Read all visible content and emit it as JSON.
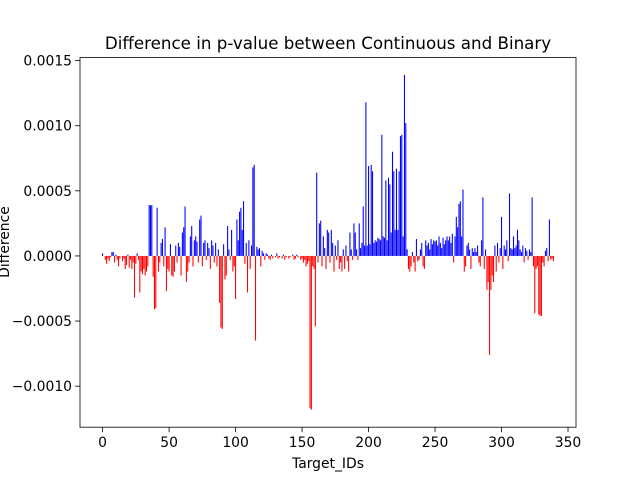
{
  "chart_data": {
    "type": "bar",
    "title": "Difference in p-value between Continuous and Binary",
    "xlabel": "Target_IDs",
    "ylabel": "Difference",
    "positive_color": "#0000ff",
    "negative_color": "#ff0000",
    "xlim": [
      -17,
      356
    ],
    "xticks": [
      0,
      50,
      100,
      150,
      200,
      250,
      300,
      350
    ],
    "ylim": [
      -0.001315,
      0.001523
    ],
    "yticks": [
      {
        "value": -0.001,
        "label": "−0.0010"
      },
      {
        "value": -0.0005,
        "label": "−0.0005"
      },
      {
        "value": 0,
        "label": "0.0000"
      },
      {
        "value": 0.0005,
        "label": "0.0005"
      },
      {
        "value": 0.001,
        "label": "0.0010"
      },
      {
        "value": 0.0015,
        "label": "0.0015"
      }
    ],
    "x": [
      0,
      1,
      2,
      3,
      4,
      5,
      6,
      7,
      8,
      9,
      10,
      11,
      12,
      13,
      14,
      15,
      16,
      17,
      18,
      19,
      20,
      21,
      22,
      23,
      24,
      25,
      26,
      27,
      28,
      29,
      30,
      31,
      32,
      33,
      34,
      35,
      36,
      37,
      38,
      39,
      40,
      41,
      42,
      43,
      44,
      45,
      46,
      47,
      48,
      49,
      50,
      51,
      52,
      53,
      54,
      55,
      56,
      57,
      58,
      59,
      60,
      61,
      62,
      63,
      64,
      65,
      66,
      67,
      68,
      69,
      70,
      71,
      72,
      73,
      74,
      75,
      76,
      77,
      78,
      79,
      80,
      81,
      82,
      83,
      84,
      85,
      86,
      87,
      88,
      89,
      90,
      91,
      92,
      93,
      94,
      95,
      96,
      97,
      98,
      99,
      100,
      101,
      102,
      103,
      104,
      105,
      106,
      107,
      108,
      109,
      110,
      111,
      112,
      113,
      114,
      115,
      116,
      117,
      118,
      119,
      120,
      121,
      122,
      123,
      124,
      125,
      126,
      127,
      128,
      129,
      130,
      131,
      132,
      133,
      134,
      135,
      136,
      137,
      138,
      139,
      140,
      141,
      142,
      143,
      144,
      145,
      146,
      147,
      148,
      149,
      150,
      151,
      152,
      153,
      154,
      155,
      156,
      157,
      158,
      159,
      160,
      161,
      162,
      163,
      164,
      165,
      166,
      167,
      168,
      169,
      170,
      171,
      172,
      173,
      174,
      175,
      176,
      177,
      178,
      179,
      180,
      181,
      182,
      183,
      184,
      185,
      186,
      187,
      188,
      189,
      190,
      191,
      192,
      193,
      194,
      195,
      196,
      197,
      198,
      199,
      200,
      201,
      202,
      203,
      204,
      205,
      206,
      207,
      208,
      209,
      210,
      211,
      212,
      213,
      214,
      215,
      216,
      217,
      218,
      219,
      220,
      221,
      222,
      223,
      224,
      225,
      226,
      227,
      228,
      229,
      230,
      231,
      232,
      233,
      234,
      235,
      236,
      237,
      238,
      239,
      240,
      241,
      242,
      243,
      244,
      245,
      246,
      247,
      248,
      249,
      250,
      251,
      252,
      253,
      254,
      255,
      256,
      257,
      258,
      259,
      260,
      261,
      262,
      263,
      264,
      265,
      266,
      267,
      268,
      269,
      270,
      271,
      272,
      273,
      274,
      275,
      276,
      277,
      278,
      279,
      280,
      281,
      282,
      283,
      284,
      285,
      286,
      287,
      288,
      289,
      290,
      291,
      292,
      293,
      294,
      295,
      296,
      297,
      298,
      299,
      300,
      301,
      302,
      303,
      304,
      305,
      306,
      307,
      308,
      309,
      310,
      311,
      312,
      313,
      314,
      315,
      316,
      317,
      318,
      319,
      320,
      321,
      322,
      323,
      324,
      325,
      326,
      327,
      328,
      329,
      330,
      331,
      332,
      333,
      334,
      335,
      336,
      337,
      338,
      339
    ],
    "values": [
      2e-05,
      0,
      -3e-05,
      -6e-05,
      -2e-05,
      -4e-05,
      -1e-05,
      3e-05,
      3e-05,
      -5e-05,
      1e-05,
      -3e-05,
      -8e-05,
      -2e-05,
      0,
      -4e-05,
      -2e-05,
      -0.0001,
      -7e-05,
      1e-05,
      -9e-05,
      -3e-05,
      -0.0001,
      -5e-05,
      -0.00032,
      -6e-05,
      2e-05,
      -3e-05,
      -0.00028,
      -0.00012,
      -0.00014,
      -0.0001,
      -0.00015,
      -0.00012,
      -8e-05,
      0.00039,
      0.00039,
      0.00039,
      -0.00016,
      -0.00041,
      -0.0004,
      0.00037,
      -0.00012,
      -5e-05,
      0.0001,
      0.00013,
      -8e-05,
      0.00022,
      -0.00027,
      -0.0001,
      -0.00012,
      9e-05,
      -0.00015,
      -0.00016,
      -0.00012,
      8e-05,
      -5e-05,
      0.0001,
      7e-05,
      -0.00015,
      0.00018,
      0.00022,
      0.00038,
      -0.0002,
      -0.00012,
      -5e-05,
      0.00015,
      0.00023,
      -8e-05,
      0.00012,
      0.00015,
      0.00011,
      -5e-05,
      0.00028,
      0.00031,
      -8e-05,
      0.0001,
      0.00012,
      -3e-05,
      0.0001,
      6e-05,
      -0.0001,
      0.00012,
      8e-05,
      -5e-05,
      0.0001,
      -8e-05,
      5e-05,
      -0.00036,
      -0.00055,
      -0.00056,
      9e-05,
      -0.00018,
      -0.00015,
      0.00023,
      5e-05,
      -3e-05,
      0.0002,
      -0.00012,
      -8e-05,
      -0.00033,
      0.00028,
      0.00012,
      0.00034,
      0.00037,
      0.0002,
      0.00042,
      -6e-05,
      0.0001,
      -0.00028,
      0.00012,
      -0.0001,
      8e-05,
      0.00068,
      0.0007,
      -0.00065,
      7e-05,
      5e-05,
      6e-05,
      -8e-05,
      4e-05,
      2e-05,
      -3e-05,
      2e-05,
      1e-05,
      -2e-05,
      -3e-05,
      1e-05,
      -2e-05,
      0,
      -1e-05,
      2e-05,
      -2e-05,
      -1e-05,
      0,
      -2e-05,
      1e-05,
      -3e-05,
      -1e-05,
      0,
      -2e-05,
      -1e-05,
      0,
      1e-05,
      -3e-05,
      -2e-05,
      1e-05,
      -1e-05,
      0,
      -3e-05,
      -2e-05,
      -5e-05,
      -3e-05,
      -8e-05,
      -6e-05,
      -4e-05,
      -0.00117,
      -0.00118,
      -8e-05,
      -0.0001,
      -0.00054,
      0.00064,
      -5e-05,
      0.00025,
      0.00027,
      -8e-05,
      0.00015,
      6e-05,
      -0.0001,
      0.0002,
      0.00018,
      -5e-05,
      0.0002,
      0.0001,
      -0.00012,
      8e-05,
      -3e-05,
      0.00012,
      -0.0001,
      -5e-05,
      -0.00012,
      5e-05,
      -0.0001,
      8e-05,
      -4e-05,
      -0.00012,
      0.00018,
      5e-05,
      -3e-05,
      0.00025,
      0.00018,
      5e-05,
      -3e-05,
      0.00025,
      6e-05,
      0.0001,
      0.00038,
      8e-05,
      0.00118,
      8e-05,
      0.00069,
      9e-05,
      0.0007,
      0.00065,
      0.0001,
      0.00012,
      0.00011,
      0.00014,
      0.00013,
      0.00012,
      0.00093,
      0.00015,
      0.00014,
      0.00058,
      0.00012,
      0.0006,
      0.00055,
      0.00018,
      0.0008,
      0.00065,
      0.0002,
      0.00067,
      0.0002,
      0.00065,
      0.00092,
      0.00093,
      0.00015,
      0.00139,
      0.00102,
      5e-05,
      -0.0001,
      -0.00012,
      -8e-05,
      3e-05,
      -5e-05,
      -0.00012,
      0.00013,
      -4e-05,
      -3e-05,
      5e-05,
      0.0001,
      -8e-05,
      -0.0001,
      0.00012,
      8e-05,
      0.0001,
      5e-05,
      0.00013,
      9e-05,
      0.00012,
      0.00011,
      0.00012,
      8e-05,
      0.00015,
      0.0001,
      6e-05,
      0.00014,
      9e-05,
      0.00012,
      0.00015,
      0.00012,
      0.00015,
      0.0001,
      0.00017,
      -5e-05,
      0.00015,
      0.0003,
      0.00022,
      0.0004,
      0.00042,
      0.00015,
      0.00051,
      -0.00012,
      -8e-05,
      8e-05,
      0.0001,
      5e-05,
      -0.0001,
      6e-05,
      3e-05,
      6e-05,
      3e-05,
      8e-05,
      -5e-05,
      -8e-05,
      0.00012,
      0.00045,
      -0.0001,
      5e-05,
      -0.00026,
      -0.0002,
      -0.00076,
      -0.00026,
      -0.00015,
      -0.0002,
      8e-05,
      -0.00012,
      0.0001,
      -5e-05,
      6e-05,
      0.0003,
      -0.0001,
      8e-05,
      5e-05,
      0.00012,
      -4e-05,
      0.00048,
      6e-05,
      5e-05,
      0.00015,
      6e-05,
      8e-05,
      0.0002,
      0.00012,
      5e-05,
      3e-05,
      8e-05,
      -5e-05,
      6e-05,
      4e-05,
      -3e-05,
      5e-05,
      3e-05,
      0.00045,
      -8e-05,
      -0.00044,
      -0.0001,
      -8e-05,
      -0.00045,
      -0.00046,
      -0.00046,
      -5e-05,
      -8e-05,
      4e-05,
      6e-05,
      -4e-05,
      0.00028,
      -3e-05,
      -2e-05,
      -4e-05
    ]
  }
}
